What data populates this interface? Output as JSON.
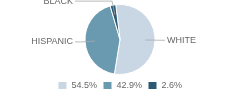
{
  "chart_data": {
    "type": "pie",
    "categories": [
      "WHITE",
      "HISPANIC",
      "BLACK"
    ],
    "values": [
      54.5,
      42.9,
      2.6
    ],
    "value_labels": [
      "54.5%",
      "42.9%",
      "2.6%"
    ],
    "colors": [
      "#c9d6e3",
      "#6a9ab0",
      "#2b5972"
    ],
    "legend": "bottom"
  }
}
